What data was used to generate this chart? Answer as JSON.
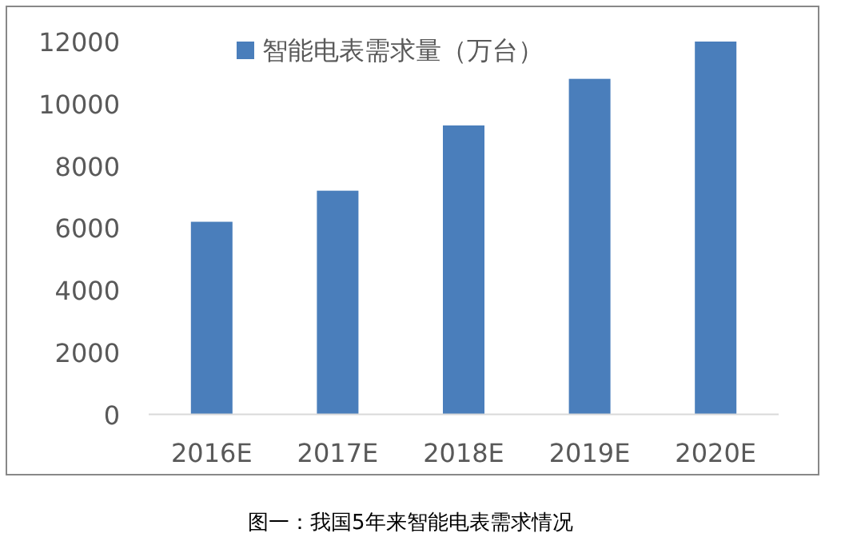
{
  "chart_data": {
    "type": "bar",
    "categories": [
      "2016E",
      "2017E",
      "2018E",
      "2019E",
      "2020E"
    ],
    "series": [
      {
        "name": "智能电表需求量（万台）",
        "color": "#4a7ebb",
        "values": [
          6200,
          7200,
          9300,
          10800,
          12000
        ]
      }
    ],
    "ylim": [
      0,
      12000
    ],
    "yticks": [
      0,
      2000,
      4000,
      6000,
      8000,
      10000,
      12000
    ],
    "grid": false,
    "legend": "top",
    "annotations": [
      "图一：我国5年来智能电表需求情况"
    ]
  }
}
